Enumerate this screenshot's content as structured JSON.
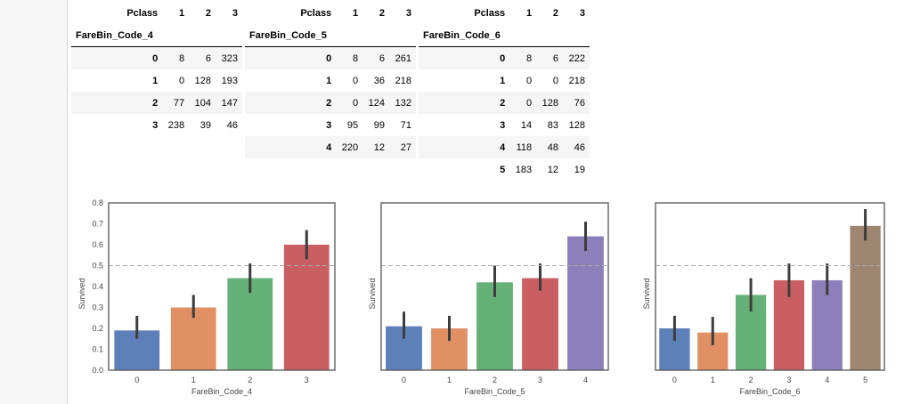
{
  "tables": [
    {
      "columns_label": "Pclass",
      "columns": [
        "1",
        "2",
        "3"
      ],
      "index_name": "FareBin_Code_4",
      "rows": [
        {
          "idx": "0",
          "vals": [
            "8",
            "6",
            "323"
          ]
        },
        {
          "idx": "1",
          "vals": [
            "0",
            "128",
            "193"
          ]
        },
        {
          "idx": "2",
          "vals": [
            "77",
            "104",
            "147"
          ]
        },
        {
          "idx": "3",
          "vals": [
            "238",
            "39",
            "46"
          ]
        }
      ]
    },
    {
      "columns_label": "Pclass",
      "columns": [
        "1",
        "2",
        "3"
      ],
      "index_name": "FareBin_Code_5",
      "rows": [
        {
          "idx": "0",
          "vals": [
            "8",
            "6",
            "261"
          ]
        },
        {
          "idx": "1",
          "vals": [
            "0",
            "36",
            "218"
          ]
        },
        {
          "idx": "2",
          "vals": [
            "0",
            "124",
            "132"
          ]
        },
        {
          "idx": "3",
          "vals": [
            "95",
            "99",
            "71"
          ]
        },
        {
          "idx": "4",
          "vals": [
            "220",
            "12",
            "27"
          ]
        }
      ]
    },
    {
      "columns_label": "Pclass",
      "columns": [
        "1",
        "2",
        "3"
      ],
      "index_name": "FareBin_Code_6",
      "rows": [
        {
          "idx": "0",
          "vals": [
            "8",
            "6",
            "222"
          ]
        },
        {
          "idx": "1",
          "vals": [
            "0",
            "0",
            "218"
          ]
        },
        {
          "idx": "2",
          "vals": [
            "0",
            "128",
            "76"
          ]
        },
        {
          "idx": "3",
          "vals": [
            "14",
            "83",
            "128"
          ]
        },
        {
          "idx": "4",
          "vals": [
            "118",
            "48",
            "46"
          ]
        },
        {
          "idx": "5",
          "vals": [
            "183",
            "12",
            "19"
          ]
        }
      ]
    }
  ],
  "chart_data": [
    {
      "type": "bar",
      "xlabel": "FareBin_Code_4",
      "ylabel": "Survived",
      "ylim": [
        0,
        0.8
      ],
      "yticks": [
        "0.0",
        "0.1",
        "0.2",
        "0.3",
        "0.4",
        "0.5",
        "0.6",
        "0.7",
        "0.8"
      ],
      "reference_line": 0.5,
      "categories": [
        "0",
        "1",
        "2",
        "3"
      ],
      "values": [
        0.19,
        0.3,
        0.44,
        0.6
      ],
      "ci": [
        [
          0.15,
          0.26
        ],
        [
          0.25,
          0.36
        ],
        [
          0.37,
          0.51
        ],
        [
          0.53,
          0.67
        ]
      ],
      "colors": [
        "#4c72b0",
        "#dd8452",
        "#55a868",
        "#c44e52"
      ]
    },
    {
      "type": "bar",
      "xlabel": "FareBin_Code_5",
      "ylabel": "Survived",
      "ylim": [
        0,
        0.8
      ],
      "reference_line": 0.5,
      "categories": [
        "0",
        "1",
        "2",
        "3",
        "4"
      ],
      "values": [
        0.21,
        0.2,
        0.42,
        0.44,
        0.64
      ],
      "ci": [
        [
          0.15,
          0.28
        ],
        [
          0.14,
          0.26
        ],
        [
          0.35,
          0.5
        ],
        [
          0.38,
          0.51
        ],
        [
          0.57,
          0.71
        ]
      ],
      "colors": [
        "#4c72b0",
        "#dd8452",
        "#55a868",
        "#c44e52",
        "#8172b3"
      ]
    },
    {
      "type": "bar",
      "xlabel": "FareBin_Code_6",
      "ylabel": "Survived",
      "ylim": [
        0,
        0.8
      ],
      "reference_line": 0.5,
      "categories": [
        "0",
        "1",
        "2",
        "3",
        "4",
        "5"
      ],
      "values": [
        0.2,
        0.18,
        0.36,
        0.43,
        0.43,
        0.69
      ],
      "ci": [
        [
          0.14,
          0.26
        ],
        [
          0.12,
          0.255
        ],
        [
          0.28,
          0.44
        ],
        [
          0.35,
          0.51
        ],
        [
          0.36,
          0.51
        ],
        [
          0.62,
          0.77
        ]
      ],
      "colors": [
        "#4c72b0",
        "#dd8452",
        "#55a868",
        "#c44e52",
        "#8172b3",
        "#937860"
      ]
    }
  ]
}
